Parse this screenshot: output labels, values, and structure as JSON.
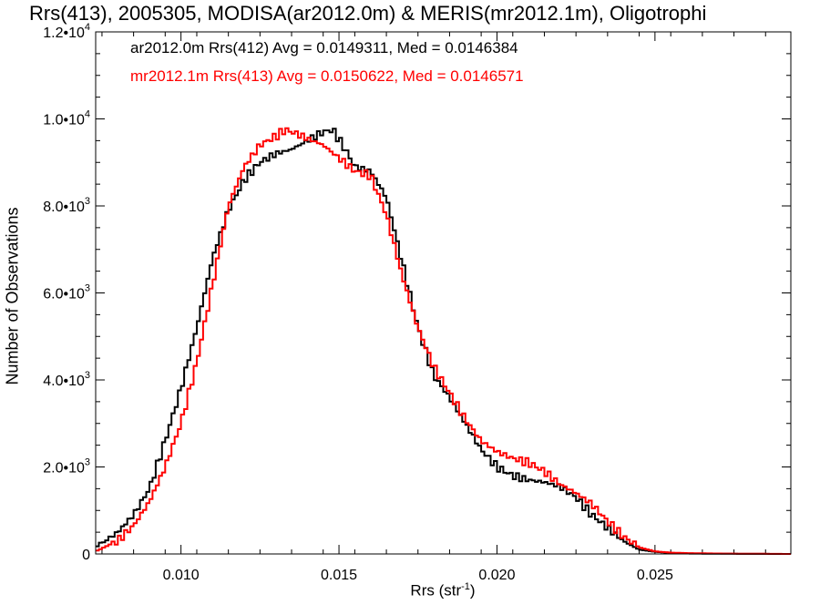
{
  "chart_data": {
    "type": "line",
    "title": "Rrs(413), 2005305, MODISA(ar2012.0m) & MERIS(mr2012.1m), Oligotrophi",
    "xlabel_main": "Rrs (str",
    "xlabel_exp": "-1",
    "xlabel_close": ")",
    "ylabel": "Number of Observations",
    "xlim": [
      0.0073,
      0.0293
    ],
    "ylim": [
      0,
      12000
    ],
    "x_ticks": [
      {
        "value": 0.01,
        "label": "0.010"
      },
      {
        "value": 0.015,
        "label": "0.015"
      },
      {
        "value": 0.02,
        "label": "0.020"
      },
      {
        "value": 0.025,
        "label": "0.025"
      }
    ],
    "y_ticks": [
      {
        "value": 0,
        "label": "0"
      },
      {
        "value": 2000,
        "mant": "2.0•10",
        "exp": "3"
      },
      {
        "value": 4000,
        "mant": "4.0•10",
        "exp": "3"
      },
      {
        "value": 6000,
        "mant": "6.0•10",
        "exp": "3"
      },
      {
        "value": 8000,
        "mant": "8.0•10",
        "exp": "3"
      },
      {
        "value": 10000,
        "mant": "1.0•10",
        "exp": "4"
      },
      {
        "value": 12000,
        "mant": "1.2•10",
        "exp": "4"
      }
    ],
    "series": [
      {
        "legend": "ar2012.0m Rrs(412) Avg = 0.0149311, Med = 0.0146384",
        "color": "#000000",
        "x": [
          0.0073,
          0.008,
          0.0085,
          0.009,
          0.0095,
          0.01,
          0.0105,
          0.011,
          0.0115,
          0.012,
          0.0125,
          0.013,
          0.0135,
          0.014,
          0.0145,
          0.0148,
          0.0152,
          0.0155,
          0.016,
          0.0165,
          0.017,
          0.0175,
          0.018,
          0.0185,
          0.019,
          0.0195,
          0.02,
          0.0205,
          0.021,
          0.0215,
          0.022,
          0.0225,
          0.023,
          0.0235,
          0.024,
          0.0245,
          0.025,
          0.0255,
          0.026,
          0.027,
          0.028,
          0.0293
        ],
        "y": [
          150,
          500,
          900,
          1500,
          2600,
          3800,
          5200,
          6800,
          7900,
          8600,
          9000,
          9200,
          9300,
          9500,
          9700,
          9750,
          9300,
          8900,
          8800,
          8200,
          6700,
          5200,
          4100,
          3600,
          3000,
          2400,
          2000,
          1800,
          1700,
          1650,
          1550,
          1300,
          900,
          600,
          300,
          100,
          50,
          20,
          10,
          5,
          2,
          0
        ]
      },
      {
        "legend": "mr2012.1m Rrs(413) Avg = 0.0150622, Med = 0.0146571",
        "color": "#ff0000",
        "x": [
          0.0073,
          0.008,
          0.0085,
          0.009,
          0.0095,
          0.01,
          0.0105,
          0.011,
          0.0115,
          0.012,
          0.0125,
          0.013,
          0.0133,
          0.0137,
          0.014,
          0.0145,
          0.015,
          0.0155,
          0.016,
          0.0165,
          0.017,
          0.0175,
          0.018,
          0.0185,
          0.019,
          0.0195,
          0.02,
          0.0205,
          0.021,
          0.0215,
          0.022,
          0.0225,
          0.023,
          0.0235,
          0.024,
          0.0245,
          0.025,
          0.0255,
          0.026,
          0.027,
          0.028,
          0.0293
        ],
        "y": [
          60,
          300,
          650,
          1200,
          2000,
          3000,
          4400,
          6200,
          8000,
          8900,
          9400,
          9600,
          9750,
          9650,
          9550,
          9400,
          9100,
          8800,
          8700,
          7800,
          6400,
          5200,
          4300,
          3700,
          3100,
          2600,
          2350,
          2200,
          2100,
          1900,
          1600,
          1400,
          1150,
          750,
          400,
          150,
          60,
          30,
          20,
          10,
          5,
          0
        ]
      }
    ]
  }
}
